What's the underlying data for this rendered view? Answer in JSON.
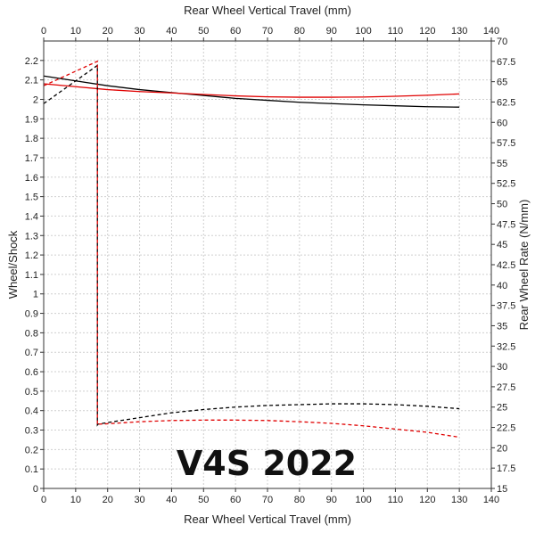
{
  "chart_data": {
    "type": "line",
    "xlabel_top": "Rear Wheel Vertical Travel (mm)",
    "xlabel_bottom": "Rear Wheel Vertical Travel (mm)",
    "ylabel_left": "Wheel/Shock",
    "ylabel_right": "Rear Wheel Rate (N/mm)",
    "annotation": "V4S 2022",
    "xlim": [
      0,
      140
    ],
    "ylim_left": [
      0,
      2.3
    ],
    "ylim_right": [
      15,
      70
    ],
    "x_ticks": [
      "0",
      "10",
      "20",
      "30",
      "40",
      "50",
      "60",
      "70",
      "80",
      "90",
      "100",
      "110",
      "120",
      "130",
      "140"
    ],
    "y_left_ticks": [
      "0",
      "0.1",
      "0.2",
      "0.3",
      "0.4",
      "0.5",
      "0.6",
      "0.7",
      "0.8",
      "0.9",
      "1",
      "1.1",
      "1.2",
      "1.3",
      "1.4",
      "1.5",
      "1.6",
      "1.7",
      "1.8",
      "1.9",
      "2",
      "2.1",
      "2.2"
    ],
    "y_right_ticks": [
      "15",
      "17.5",
      "20",
      "22.5",
      "25",
      "27.5",
      "30",
      "32.5",
      "35",
      "37.5",
      "40",
      "42.5",
      "45",
      "47.5",
      "50",
      "52.5",
      "55",
      "57.5",
      "60",
      "62.5",
      "65",
      "67.5",
      "70"
    ],
    "grid": true,
    "series": [
      {
        "color": "#000000",
        "style": "solid",
        "axis": "left",
        "x": [
          0,
          10,
          20,
          30,
          40,
          50,
          60,
          70,
          80,
          90,
          100,
          110,
          120,
          130
        ],
        "y": [
          2.12,
          2.095,
          2.07,
          2.05,
          2.035,
          2.02,
          2.005,
          1.995,
          1.985,
          1.978,
          1.972,
          1.967,
          1.962,
          1.96
        ]
      },
      {
        "color": "#e00000",
        "style": "solid",
        "axis": "left",
        "x": [
          0,
          10,
          20,
          30,
          40,
          50,
          60,
          70,
          80,
          90,
          100,
          110,
          120,
          130
        ],
        "y": [
          2.08,
          2.065,
          2.05,
          2.04,
          2.033,
          2.025,
          2.018,
          2.013,
          2.011,
          2.011,
          2.012,
          2.016,
          2.021,
          2.028
        ]
      },
      {
        "color": "#000000",
        "style": "dashed",
        "axis": "right",
        "x": [
          0,
          16.8,
          16.8,
          17,
          20,
          30,
          40,
          50,
          60,
          70,
          80,
          90,
          100,
          110,
          120,
          130
        ],
        "y": [
          62.3,
          67.0,
          22.8,
          22.9,
          23.1,
          23.7,
          24.3,
          24.7,
          25.0,
          25.2,
          25.3,
          25.4,
          25.4,
          25.3,
          25.1,
          24.8
        ]
      },
      {
        "color": "#e00000",
        "style": "dashed",
        "axis": "right",
        "x": [
          0,
          16.8,
          16.8,
          17,
          20,
          30,
          40,
          50,
          60,
          70,
          80,
          90,
          100,
          110,
          120,
          130
        ],
        "y": [
          64.5,
          67.5,
          22.8,
          22.9,
          22.95,
          23.2,
          23.35,
          23.4,
          23.4,
          23.35,
          23.2,
          23.0,
          22.7,
          22.3,
          21.9,
          21.3
        ]
      }
    ]
  }
}
